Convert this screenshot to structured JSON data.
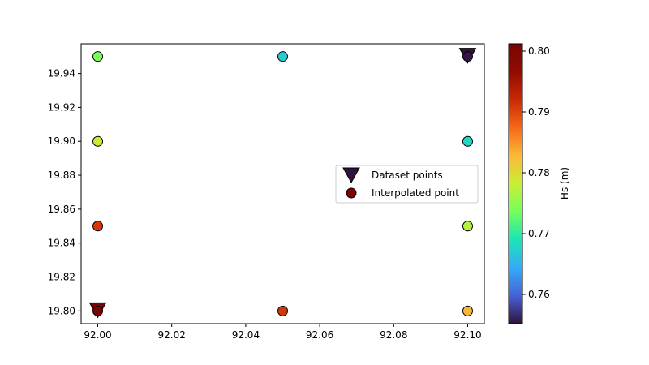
{
  "chart_data": {
    "type": "scatter",
    "title": "",
    "xlabel": "",
    "ylabel": "",
    "xlim": [
      91.9955,
      92.1045
    ],
    "ylim": [
      19.7925,
      19.9575
    ],
    "xticks": [
      "92.00",
      "92.02",
      "92.04",
      "92.06",
      "92.08",
      "92.10"
    ],
    "yticks": [
      "19.80",
      "19.82",
      "19.84",
      "19.86",
      "19.88",
      "19.90",
      "19.92",
      "19.94"
    ],
    "grid": false,
    "colormap": "turbo",
    "colorbar": {
      "label": "Hs (m)",
      "range": [
        0.7552,
        0.8012
      ],
      "ticks": [
        "0.76",
        "0.77",
        "0.78",
        "0.79",
        "0.80"
      ]
    },
    "legend": {
      "placement": "center-right",
      "entries": [
        "Dataset points",
        "Interpolated point"
      ]
    },
    "series": [
      {
        "name": "Dataset points",
        "marker": "triangle-down",
        "points": [
          {
            "x": 92.0,
            "y": 19.8,
            "value": 0.8012
          },
          {
            "x": 92.1,
            "y": 19.95,
            "value": 0.7552
          }
        ]
      },
      {
        "name": "Interpolated point",
        "marker": "circle",
        "points": [
          {
            "x": 92.0,
            "y": 19.95,
            "value": 0.774
          },
          {
            "x": 92.05,
            "y": 19.95,
            "value": 0.767
          },
          {
            "x": 92.1,
            "y": 19.95,
            "value": 0.7555
          },
          {
            "x": 92.0,
            "y": 19.9,
            "value": 0.779
          },
          {
            "x": 92.1,
            "y": 19.9,
            "value": 0.768
          },
          {
            "x": 92.0,
            "y": 19.85,
            "value": 0.791
          },
          {
            "x": 92.1,
            "y": 19.85,
            "value": 0.777
          },
          {
            "x": 92.0,
            "y": 19.8,
            "value": 0.801
          },
          {
            "x": 92.05,
            "y": 19.8,
            "value": 0.791
          },
          {
            "x": 92.1,
            "y": 19.8,
            "value": 0.783
          }
        ]
      }
    ],
    "legend_swatch_colors": {
      "Dataset points": "#30123b",
      "Interpolated point": "#7a0403"
    }
  }
}
